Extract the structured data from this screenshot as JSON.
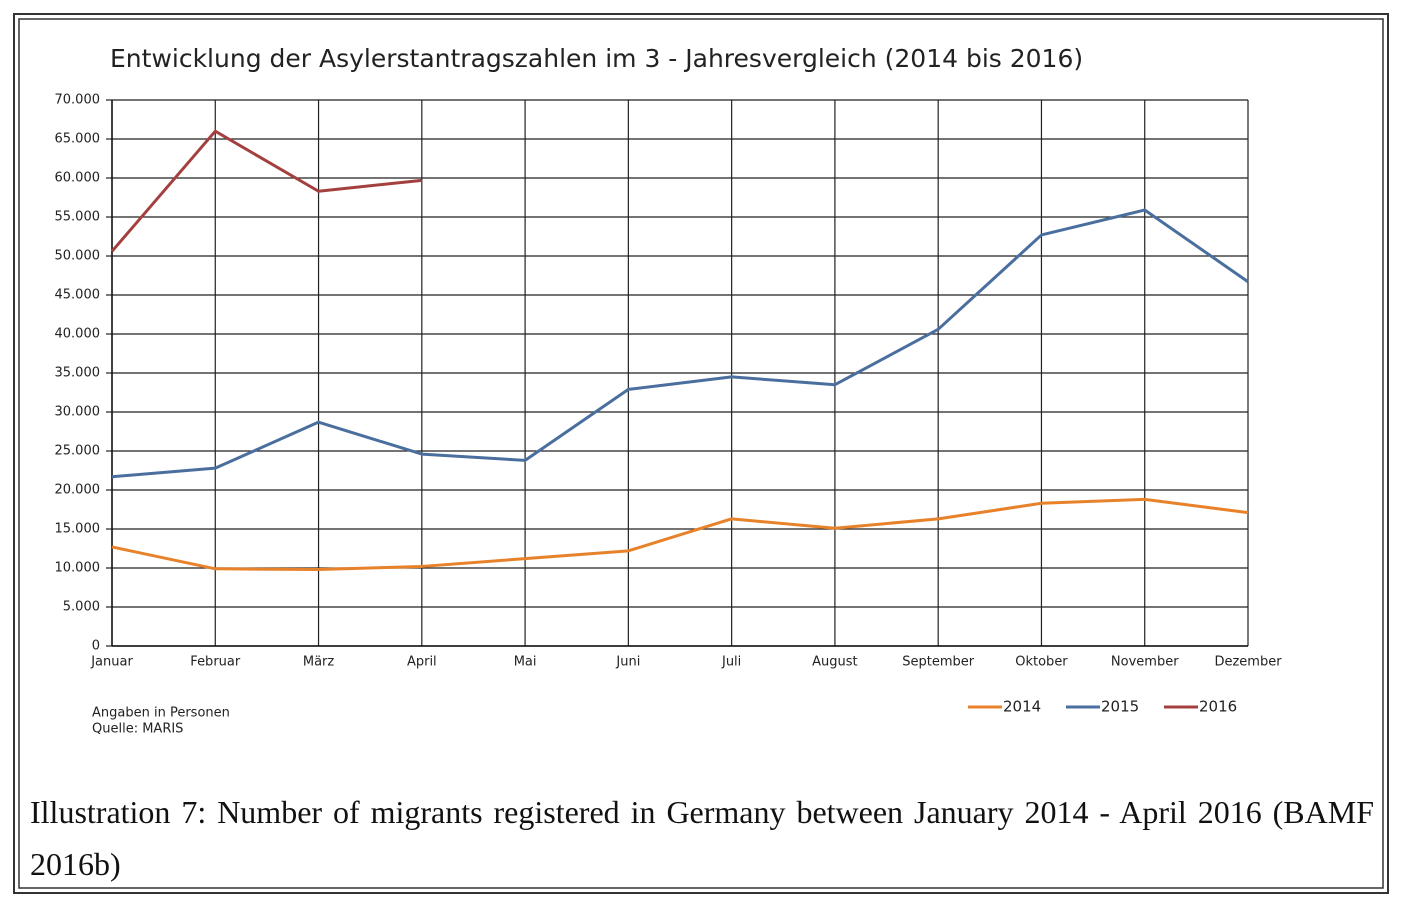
{
  "chart_data": {
    "type": "line",
    "title": "Entwicklung der Asylerstantragszahlen im 3 - Jahresvergleich (2014 bis 2016)",
    "categories": [
      "Januar",
      "Februar",
      "März",
      "April",
      "Mai",
      "Juni",
      "Juli",
      "August",
      "September",
      "Oktober",
      "November",
      "Dezember"
    ],
    "series": [
      {
        "name": "2014",
        "color": "#e8822a",
        "values": [
          12700,
          9900,
          9800,
          10200,
          11200,
          12200,
          16300,
          15100,
          16300,
          18300,
          18800,
          17100
        ]
      },
      {
        "name": "2015",
        "color": "#4a6f9e",
        "values": [
          21700,
          22800,
          28700,
          24600,
          23800,
          32900,
          34500,
          33500,
          40600,
          52700,
          55900,
          46700
        ]
      },
      {
        "name": "2016",
        "color": "#a3403f",
        "values": [
          50600,
          66000,
          58300,
          59700,
          null,
          null,
          null,
          null,
          null,
          null,
          null,
          null
        ]
      }
    ],
    "ylim": [
      0,
      70000
    ],
    "yticks": [
      0,
      {
        "value": 5000,
        "label": "5.000"
      },
      {
        "value": 10000,
        "label": "10.000"
      },
      {
        "value": 15000,
        "label": "15.000"
      },
      {
        "value": 20000,
        "label": "20.000"
      },
      {
        "value": 25000,
        "label": "25.000"
      },
      {
        "value": 30000,
        "label": "30.000"
      },
      {
        "value": 35000,
        "label": "35.000"
      },
      {
        "value": 40000,
        "label": "40.000"
      },
      {
        "value": 45000,
        "label": "45.000"
      },
      {
        "value": 50000,
        "label": "50.000"
      },
      {
        "value": 55000,
        "label": "55.000"
      },
      {
        "value": 60000,
        "label": "60.000"
      },
      {
        "value": 65000,
        "label": "65.000"
      },
      {
        "value": 70000,
        "label": "70.000"
      }
    ],
    "grid": true,
    "legend": "bottom-right",
    "notes": [
      "Angaben in Personen",
      "Quelle: MARIS"
    ]
  },
  "caption": "Illustration 7: Number of migrants registered in Germany between January 2014 - April 2016 (BAMF 2016b)"
}
